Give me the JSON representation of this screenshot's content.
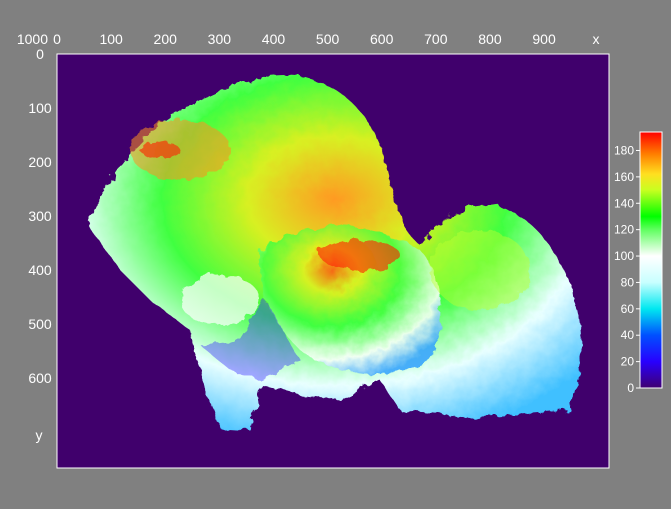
{
  "chart_data": {
    "type": "heatmap",
    "title": "",
    "xlabel": "x",
    "ylabel": "y",
    "xlim": [
      0,
      1020
    ],
    "ylim": [
      0,
      767
    ],
    "y_inverted": true,
    "x_ticks": [
      0,
      100,
      200,
      300,
      400,
      500,
      600,
      700,
      800,
      900
    ],
    "y_ticks": [
      0,
      100,
      200,
      300,
      400,
      500,
      600
    ],
    "overlapping_x_label": "1000",
    "background_color": "#40006c",
    "colorbar": {
      "range": [
        0,
        194
      ],
      "ticks": [
        0,
        20,
        40,
        60,
        80,
        100,
        120,
        140,
        160,
        180
      ],
      "colormap": [
        {
          "v": 0,
          "c": "#400070"
        },
        {
          "v": 20,
          "c": "#2800ff"
        },
        {
          "v": 40,
          "c": "#0050ff"
        },
        {
          "v": 60,
          "c": "#00e8f0"
        },
        {
          "v": 80,
          "c": "#c8ffff"
        },
        {
          "v": 100,
          "c": "#ffffff"
        },
        {
          "v": 120,
          "c": "#60ff60"
        },
        {
          "v": 130,
          "c": "#00ff00"
        },
        {
          "v": 150,
          "c": "#c8ff20"
        },
        {
          "v": 162,
          "c": "#ffe020"
        },
        {
          "v": 177,
          "c": "#ff8000"
        },
        {
          "v": 194,
          "c": "#ff0000"
        }
      ]
    }
  }
}
